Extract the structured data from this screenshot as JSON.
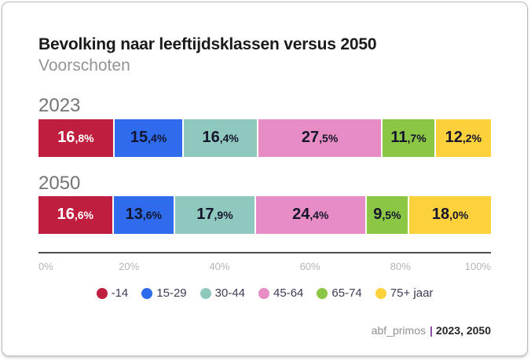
{
  "card": {
    "title": "Bevolking naar leeftijdsklassen versus 2050",
    "subtitle": "Voorschoten"
  },
  "chart_data": {
    "type": "bar",
    "variant": "horizontal-stacked-percentage",
    "title": "Bevolking naar leeftijdsklassen versus 2050",
    "subtitle": "Voorschoten",
    "categories": [
      "-14",
      "15-29",
      "30-44",
      "45-64",
      "65-74",
      "75+ jaar"
    ],
    "category_colors": [
      "#bf1e3e",
      "#2e6bed",
      "#8fc8bd",
      "#e78cc4",
      "#8cc645",
      "#fcd13c"
    ],
    "label_text_colors": [
      "#ffffff",
      "#15152e",
      "#15152e",
      "#15152e",
      "#15152e",
      "#15152e"
    ],
    "series": [
      {
        "name": "2023",
        "values": [
          16.8,
          15.4,
          16.4,
          27.5,
          11.7,
          12.2
        ],
        "display_labels": [
          "16,8%",
          "15,4%",
          "16,4%",
          "27,5%",
          "11,7%",
          "12,2%"
        ]
      },
      {
        "name": "2050",
        "values": [
          16.6,
          13.6,
          17.9,
          24.4,
          9.5,
          18.0
        ],
        "display_labels": [
          "16,6%",
          "13,6%",
          "17,9%",
          "24,4%",
          "9,5%",
          "18,0%"
        ]
      }
    ],
    "x_ticks": [
      "0%",
      "20%",
      "40%",
      "60%",
      "80%",
      "100%"
    ],
    "x_tick_positions": [
      0,
      20,
      40,
      60,
      80,
      100
    ],
    "xlim": [
      0,
      100
    ],
    "grid": false,
    "legend_position": "bottom-center"
  },
  "footer": {
    "source": "abf_primos",
    "separator": "|",
    "years": "2023, 2050"
  }
}
